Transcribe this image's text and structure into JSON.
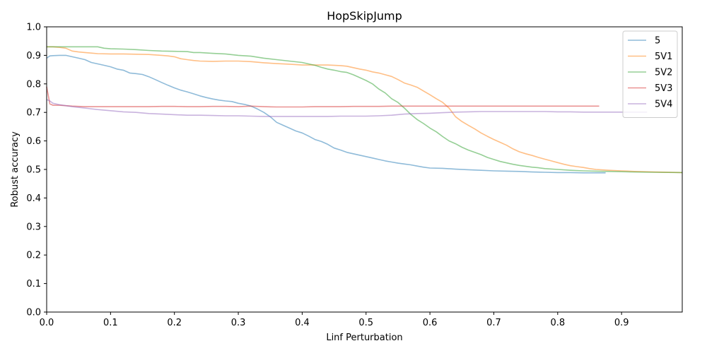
{
  "chart_data": {
    "type": "line",
    "title": "HopSkipJump",
    "xlabel": "Linf Perturbation",
    "ylabel": "Robust accuracy",
    "xlim": [
      0.0,
      0.995
    ],
    "ylim": [
      0.0,
      1.0
    ],
    "xticks": [
      "0.0",
      "0.1",
      "0.2",
      "0.3",
      "0.4",
      "0.5",
      "0.6",
      "0.7",
      "0.8",
      "0.9"
    ],
    "yticks": [
      "0.0",
      "0.1",
      "0.2",
      "0.3",
      "0.4",
      "0.5",
      "0.6",
      "0.7",
      "0.8",
      "0.9",
      "1.0"
    ],
    "grid": false,
    "legend_position": "top-right",
    "series": [
      {
        "name": "5",
        "color": "#1f77b4",
        "x": [
          0.0,
          0.005,
          0.01,
          0.02,
          0.03,
          0.04,
          0.05,
          0.06,
          0.07,
          0.08,
          0.09,
          0.1,
          0.11,
          0.12,
          0.13,
          0.14,
          0.15,
          0.16,
          0.17,
          0.18,
          0.19,
          0.2,
          0.21,
          0.22,
          0.23,
          0.24,
          0.25,
          0.26,
          0.27,
          0.28,
          0.29,
          0.3,
          0.31,
          0.32,
          0.33,
          0.34,
          0.35,
          0.36,
          0.37,
          0.38,
          0.39,
          0.4,
          0.41,
          0.42,
          0.43,
          0.44,
          0.45,
          0.46,
          0.47,
          0.48,
          0.49,
          0.5,
          0.51,
          0.52,
          0.53,
          0.54,
          0.55,
          0.56,
          0.57,
          0.58,
          0.59,
          0.6,
          0.62,
          0.64,
          0.66,
          0.68,
          0.7,
          0.72,
          0.74,
          0.76,
          0.78,
          0.8,
          0.82,
          0.84,
          0.86,
          0.875
        ],
        "y": [
          0.89,
          0.898,
          0.899,
          0.9,
          0.9,
          0.895,
          0.89,
          0.885,
          0.875,
          0.87,
          0.865,
          0.86,
          0.852,
          0.848,
          0.838,
          0.836,
          0.833,
          0.825,
          0.815,
          0.805,
          0.795,
          0.786,
          0.778,
          0.772,
          0.765,
          0.758,
          0.752,
          0.747,
          0.743,
          0.74,
          0.738,
          0.732,
          0.728,
          0.722,
          0.712,
          0.7,
          0.685,
          0.665,
          0.655,
          0.645,
          0.635,
          0.628,
          0.617,
          0.605,
          0.598,
          0.588,
          0.575,
          0.568,
          0.56,
          0.555,
          0.55,
          0.545,
          0.54,
          0.535,
          0.53,
          0.526,
          0.522,
          0.519,
          0.516,
          0.512,
          0.508,
          0.505,
          0.504,
          0.501,
          0.499,
          0.497,
          0.495,
          0.494,
          0.493,
          0.491,
          0.49,
          0.489,
          0.489,
          0.488,
          0.488,
          0.488
        ]
      },
      {
        "name": "5V1",
        "color": "#ff7f0e",
        "x": [
          0.0,
          0.01,
          0.02,
          0.03,
          0.04,
          0.05,
          0.06,
          0.07,
          0.08,
          0.1,
          0.12,
          0.14,
          0.16,
          0.18,
          0.19,
          0.2,
          0.21,
          0.22,
          0.23,
          0.24,
          0.26,
          0.28,
          0.3,
          0.32,
          0.34,
          0.36,
          0.38,
          0.4,
          0.42,
          0.44,
          0.46,
          0.47,
          0.48,
          0.49,
          0.5,
          0.51,
          0.52,
          0.53,
          0.54,
          0.55,
          0.56,
          0.57,
          0.58,
          0.59,
          0.6,
          0.61,
          0.62,
          0.63,
          0.64,
          0.65,
          0.66,
          0.67,
          0.68,
          0.69,
          0.7,
          0.71,
          0.72,
          0.73,
          0.74,
          0.75,
          0.76,
          0.77,
          0.78,
          0.79,
          0.8,
          0.81,
          0.82,
          0.83,
          0.84,
          0.85,
          0.86,
          0.88,
          0.9,
          0.92,
          0.95,
          0.995
        ],
        "y": [
          0.93,
          0.93,
          0.928,
          0.925,
          0.915,
          0.912,
          0.91,
          0.908,
          0.906,
          0.905,
          0.905,
          0.904,
          0.903,
          0.9,
          0.898,
          0.895,
          0.888,
          0.885,
          0.882,
          0.88,
          0.879,
          0.88,
          0.88,
          0.878,
          0.874,
          0.871,
          0.869,
          0.866,
          0.866,
          0.866,
          0.864,
          0.862,
          0.857,
          0.852,
          0.848,
          0.842,
          0.838,
          0.832,
          0.826,
          0.815,
          0.803,
          0.796,
          0.788,
          0.775,
          0.762,
          0.748,
          0.735,
          0.715,
          0.685,
          0.668,
          0.655,
          0.642,
          0.628,
          0.616,
          0.605,
          0.595,
          0.585,
          0.572,
          0.562,
          0.555,
          0.549,
          0.542,
          0.536,
          0.53,
          0.524,
          0.518,
          0.513,
          0.51,
          0.507,
          0.503,
          0.5,
          0.497,
          0.495,
          0.493,
          0.491,
          0.489
        ]
      },
      {
        "name": "5V2",
        "color": "#2ca02c",
        "x": [
          0.0,
          0.01,
          0.02,
          0.04,
          0.06,
          0.07,
          0.08,
          0.09,
          0.1,
          0.12,
          0.14,
          0.16,
          0.18,
          0.2,
          0.22,
          0.23,
          0.24,
          0.26,
          0.28,
          0.3,
          0.32,
          0.34,
          0.36,
          0.38,
          0.4,
          0.41,
          0.42,
          0.43,
          0.44,
          0.45,
          0.46,
          0.47,
          0.48,
          0.49,
          0.5,
          0.51,
          0.52,
          0.53,
          0.54,
          0.55,
          0.56,
          0.57,
          0.58,
          0.59,
          0.6,
          0.61,
          0.62,
          0.63,
          0.64,
          0.65,
          0.66,
          0.67,
          0.68,
          0.69,
          0.7,
          0.71,
          0.72,
          0.73,
          0.74,
          0.75,
          0.76,
          0.77,
          0.78,
          0.8,
          0.82,
          0.84,
          0.86,
          0.88,
          0.9,
          0.92,
          0.95,
          0.995
        ],
        "y": [
          0.93,
          0.93,
          0.93,
          0.93,
          0.93,
          0.93,
          0.93,
          0.925,
          0.923,
          0.922,
          0.92,
          0.917,
          0.915,
          0.914,
          0.913,
          0.91,
          0.91,
          0.907,
          0.905,
          0.9,
          0.897,
          0.89,
          0.885,
          0.88,
          0.875,
          0.87,
          0.865,
          0.858,
          0.852,
          0.848,
          0.843,
          0.84,
          0.832,
          0.822,
          0.812,
          0.8,
          0.782,
          0.768,
          0.748,
          0.735,
          0.715,
          0.693,
          0.675,
          0.661,
          0.645,
          0.632,
          0.615,
          0.6,
          0.59,
          0.578,
          0.568,
          0.56,
          0.552,
          0.542,
          0.535,
          0.528,
          0.523,
          0.518,
          0.514,
          0.511,
          0.508,
          0.506,
          0.503,
          0.5,
          0.497,
          0.495,
          0.494,
          0.493,
          0.492,
          0.491,
          0.49,
          0.489
        ]
      },
      {
        "name": "5V3",
        "color": "#d62728",
        "x": [
          0.0,
          0.005,
          0.01,
          0.02,
          0.04,
          0.06,
          0.08,
          0.1,
          0.12,
          0.14,
          0.16,
          0.18,
          0.2,
          0.22,
          0.24,
          0.26,
          0.28,
          0.3,
          0.32,
          0.34,
          0.36,
          0.38,
          0.4,
          0.42,
          0.44,
          0.46,
          0.48,
          0.5,
          0.52,
          0.54,
          0.56,
          0.58,
          0.6,
          0.62,
          0.64,
          0.66,
          0.68,
          0.7,
          0.72,
          0.74,
          0.76,
          0.78,
          0.8,
          0.82,
          0.84,
          0.865
        ],
        "y": [
          0.79,
          0.73,
          0.725,
          0.725,
          0.722,
          0.72,
          0.72,
          0.72,
          0.72,
          0.72,
          0.72,
          0.721,
          0.721,
          0.72,
          0.72,
          0.721,
          0.721,
          0.72,
          0.722,
          0.72,
          0.719,
          0.719,
          0.719,
          0.72,
          0.72,
          0.72,
          0.721,
          0.721,
          0.721,
          0.722,
          0.722,
          0.722,
          0.722,
          0.722,
          0.722,
          0.722,
          0.722,
          0.722,
          0.722,
          0.722,
          0.722,
          0.722,
          0.722,
          0.722,
          0.722,
          0.722
        ]
      },
      {
        "name": "5V4",
        "color": "#9467bd",
        "x": [
          0.0,
          0.005,
          0.01,
          0.02,
          0.04,
          0.06,
          0.08,
          0.1,
          0.12,
          0.14,
          0.16,
          0.18,
          0.2,
          0.22,
          0.24,
          0.26,
          0.28,
          0.3,
          0.32,
          0.34,
          0.36,
          0.38,
          0.4,
          0.42,
          0.44,
          0.46,
          0.48,
          0.5,
          0.52,
          0.54,
          0.56,
          0.58,
          0.6,
          0.62,
          0.64,
          0.66,
          0.68,
          0.7,
          0.72,
          0.74,
          0.76,
          0.78,
          0.8,
          0.82,
          0.84,
          0.86,
          0.88,
          0.9,
          0.92,
          0.94
        ],
        "y": [
          0.745,
          0.74,
          0.732,
          0.727,
          0.72,
          0.715,
          0.71,
          0.706,
          0.702,
          0.7,
          0.696,
          0.694,
          0.692,
          0.69,
          0.69,
          0.689,
          0.688,
          0.688,
          0.687,
          0.686,
          0.686,
          0.686,
          0.686,
          0.686,
          0.686,
          0.687,
          0.687,
          0.687,
          0.688,
          0.69,
          0.694,
          0.696,
          0.697,
          0.699,
          0.701,
          0.702,
          0.703,
          0.703,
          0.703,
          0.703,
          0.703,
          0.703,
          0.702,
          0.702,
          0.701,
          0.701,
          0.701,
          0.701,
          0.701,
          0.701
        ]
      }
    ]
  }
}
